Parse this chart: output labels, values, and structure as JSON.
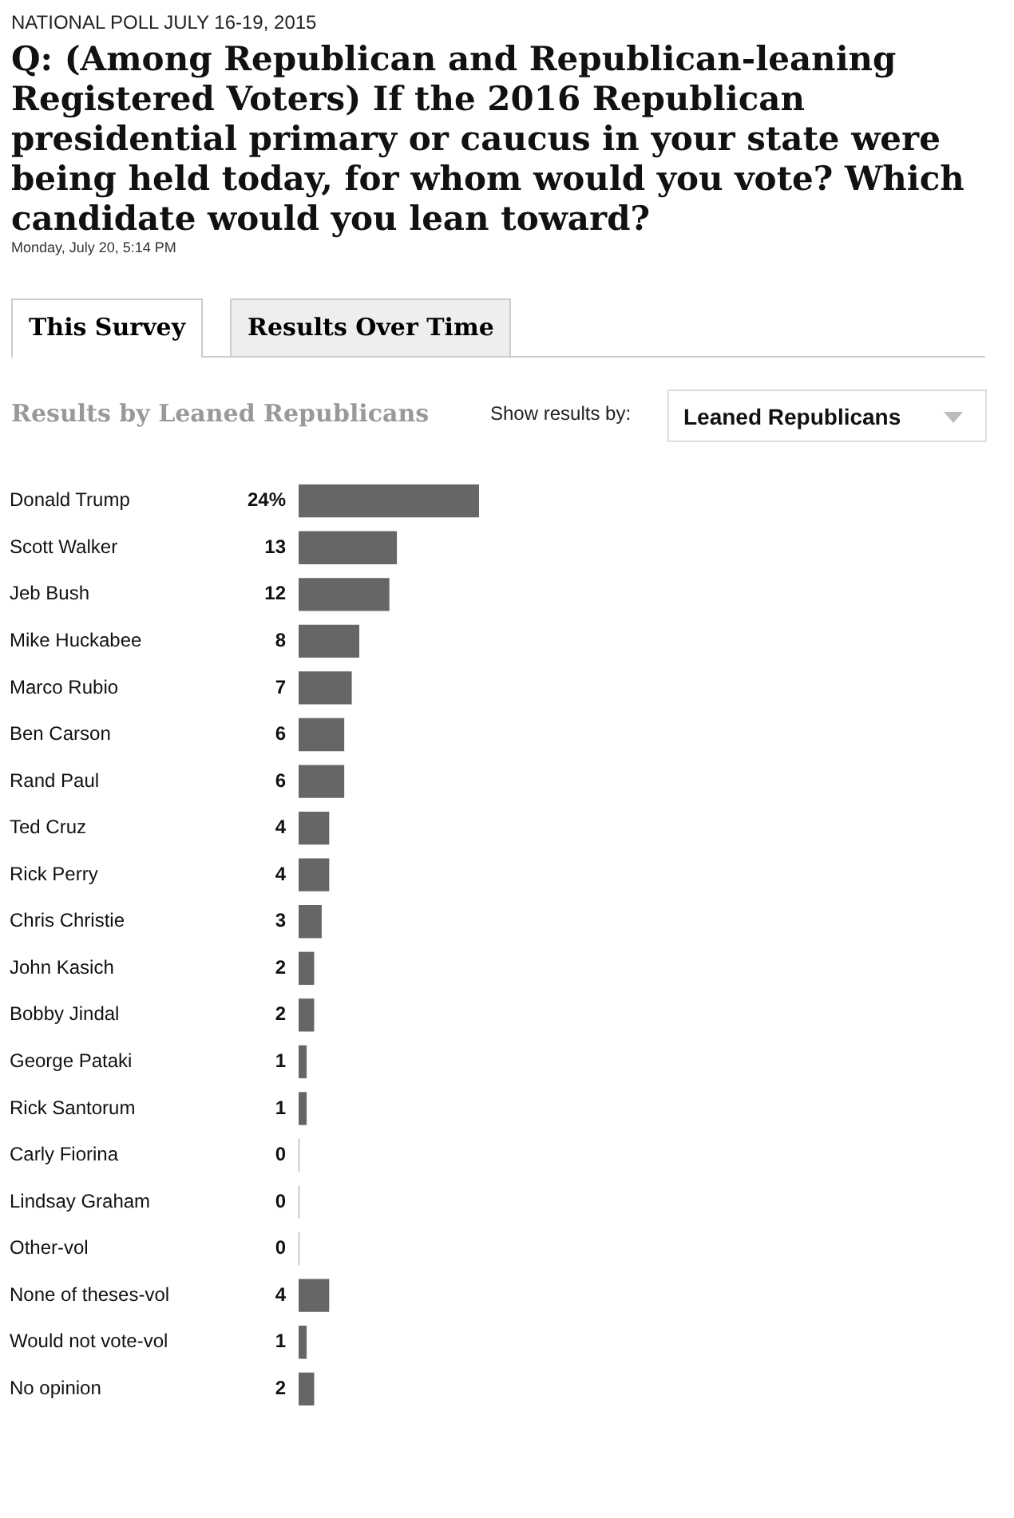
{
  "chart_data": {
    "type": "bar",
    "orientation": "horizontal",
    "subtitle": "NATIONAL POLL JULY 16-19, 2015",
    "title": "Q: (Among Republican and Republican-leaning Registered Voters) If the 2016 Republican presidential primary or caucus in your state were being held today, for whom would you vote? Which candidate would you lean toward?",
    "annotations": [
      "Monday, July 20, 5:14 PM",
      "This Survey",
      "Results Over Time",
      "Results by Leaned Republicans",
      "Show results by:",
      "Leaned Republicans"
    ],
    "categories": [
      "Donald Trump",
      "Scott Walker",
      "Jeb Bush",
      "Mike Huckabee",
      "Marco Rubio",
      "Ben Carson",
      "Rand Paul",
      "Ted Cruz",
      "Rick Perry",
      "Chris Christie",
      "John Kasich",
      "Bobby Jindal",
      "George Pataki",
      "Rick Santorum",
      "Carly Fiorina",
      "Lindsay Graham",
      "Other-vol",
      "None of theses-vol",
      "Would not vote-vol",
      "No opinion"
    ],
    "values": [
      24,
      13,
      12,
      8,
      7,
      6,
      6,
      4,
      4,
      3,
      2,
      2,
      1,
      1,
      0,
      0,
      0,
      4,
      1,
      2
    ],
    "value_labels": [
      "24%",
      "13",
      "12",
      "8",
      "7",
      "6",
      "6",
      "4",
      "4",
      "3",
      "2",
      "2",
      "1",
      "1",
      "0",
      "0",
      "0",
      "4",
      "1",
      "2"
    ],
    "color": "#666666",
    "grid": false,
    "legend": false
  }
}
